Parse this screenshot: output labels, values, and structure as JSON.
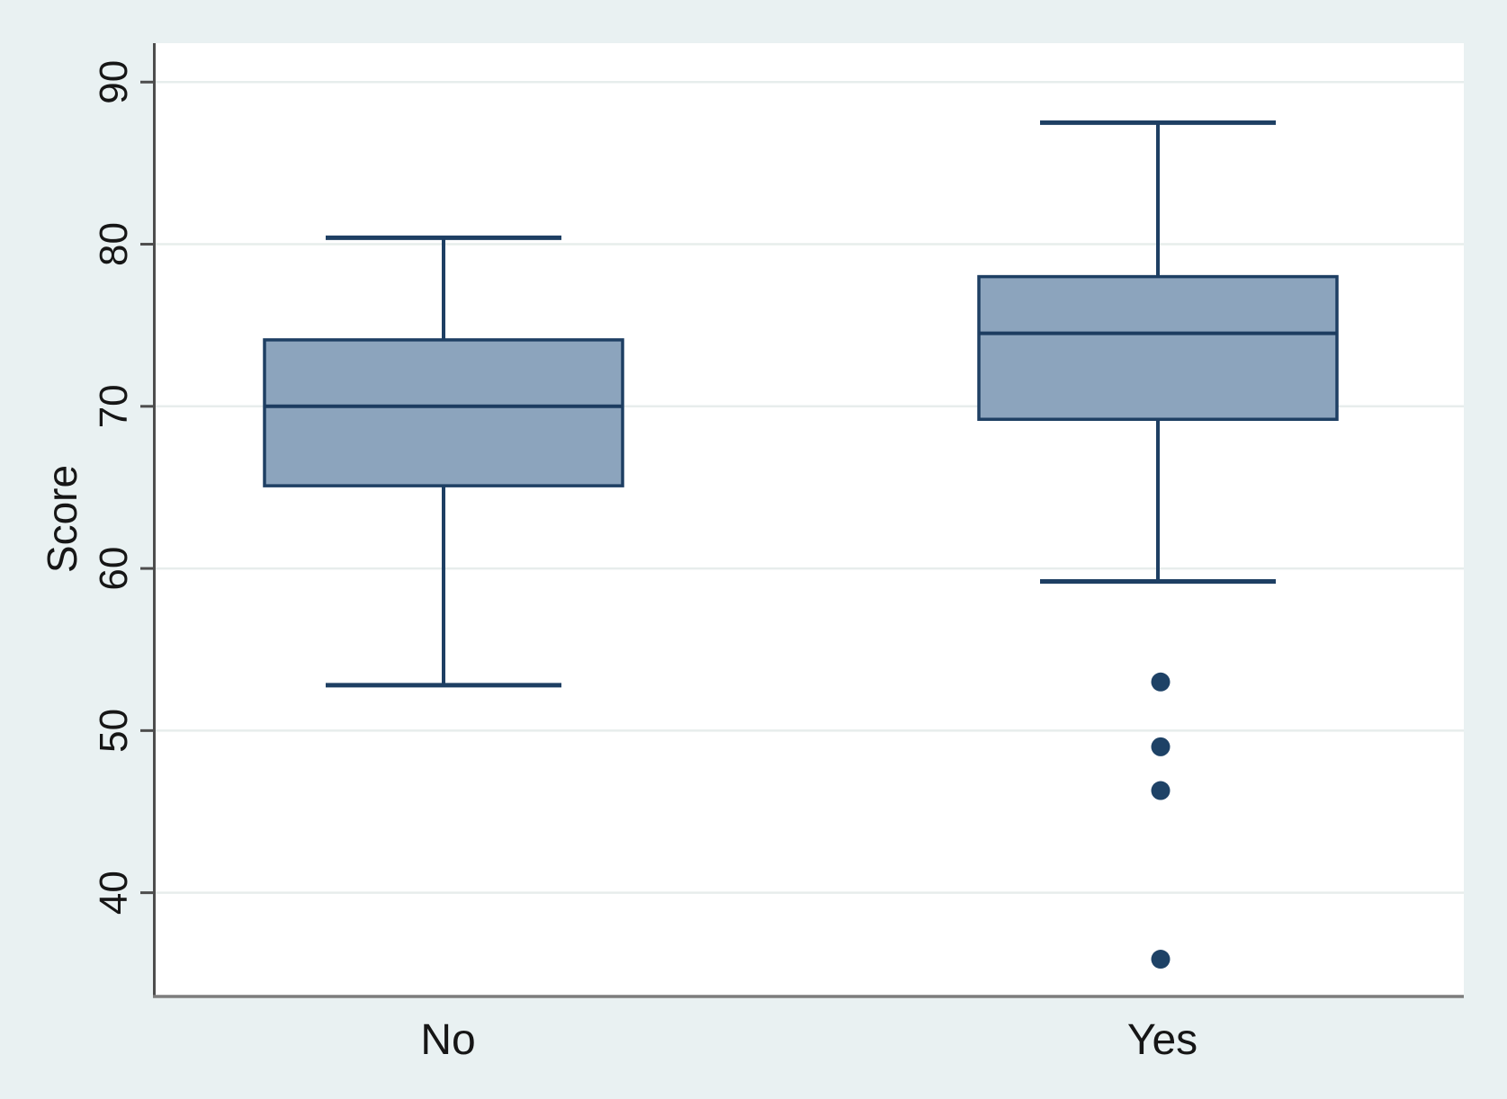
{
  "chart_data": {
    "type": "box",
    "title": "",
    "xlabel": "",
    "ylabel": "Score",
    "categories": [
      "No",
      "Yes"
    ],
    "y_ticks": [
      40,
      50,
      60,
      70,
      80,
      90
    ],
    "ylim": [
      33.6,
      92.4
    ],
    "grid": "horizontal",
    "legend": "none",
    "series": [
      {
        "category": "No",
        "whisker_low": 52.8,
        "q1": 65.1,
        "median": 70.0,
        "q3": 74.1,
        "whisker_high": 80.4,
        "outliers": []
      },
      {
        "category": "Yes",
        "whisker_low": 59.2,
        "q1": 69.2,
        "median": 74.5,
        "q3": 78.0,
        "whisker_high": 87.5,
        "outliers": [
          53.0,
          49.0,
          46.3,
          35.9
        ]
      }
    ]
  },
  "colors": {
    "figure_background": "#e9f1f2",
    "plot_background": "#ffffff",
    "gridline": "#e7edec",
    "y_axis": "#4d4d4d",
    "x_axis": "#7d7d7d",
    "box_fill": "#8ca4bd",
    "box_border": "#1e3f63",
    "median": "#1c3c60",
    "outlier": "#1e4266",
    "text": "#161616"
  }
}
